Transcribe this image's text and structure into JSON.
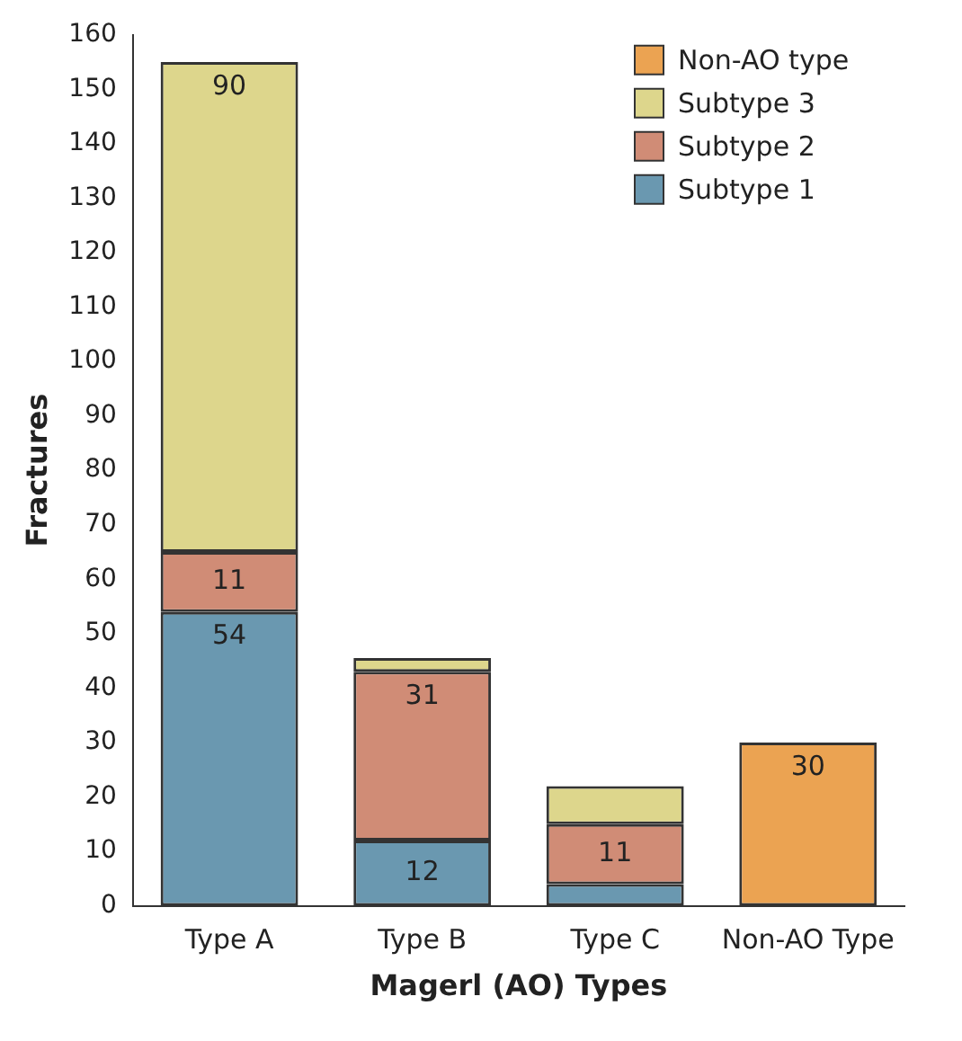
{
  "chart_data": {
    "type": "bar",
    "stacked": true,
    "xlabel": "Magerl (AO) Types",
    "ylabel": "Fractures",
    "categories": [
      "Type A",
      "Type B",
      "Type C",
      "Non-AO Type"
    ],
    "series": [
      {
        "name": "Subtype 1",
        "color": "#6a98b0",
        "values": [
          54,
          12,
          4,
          null
        ],
        "value_labels": [
          "54",
          "12",
          null,
          null
        ]
      },
      {
        "name": "Subtype 2",
        "color": "#d08c76",
        "values": [
          11,
          31,
          11,
          null
        ],
        "value_labels": [
          "11",
          "31",
          "11",
          null
        ]
      },
      {
        "name": "Subtype 3",
        "color": "#ddd68c",
        "values": [
          90,
          2.5,
          7,
          null
        ],
        "value_labels": [
          "90",
          null,
          null,
          null
        ]
      },
      {
        "name": "Non-AO type",
        "color": "#eba352",
        "values": [
          null,
          null,
          null,
          30
        ],
        "value_labels": [
          null,
          null,
          null,
          "30"
        ]
      }
    ],
    "ylim": [
      0,
      160
    ],
    "yticks": [
      0,
      10,
      20,
      30,
      40,
      50,
      60,
      70,
      80,
      90,
      100,
      110,
      120,
      130,
      140,
      150,
      160
    ],
    "grid": false,
    "legend": "top right"
  }
}
